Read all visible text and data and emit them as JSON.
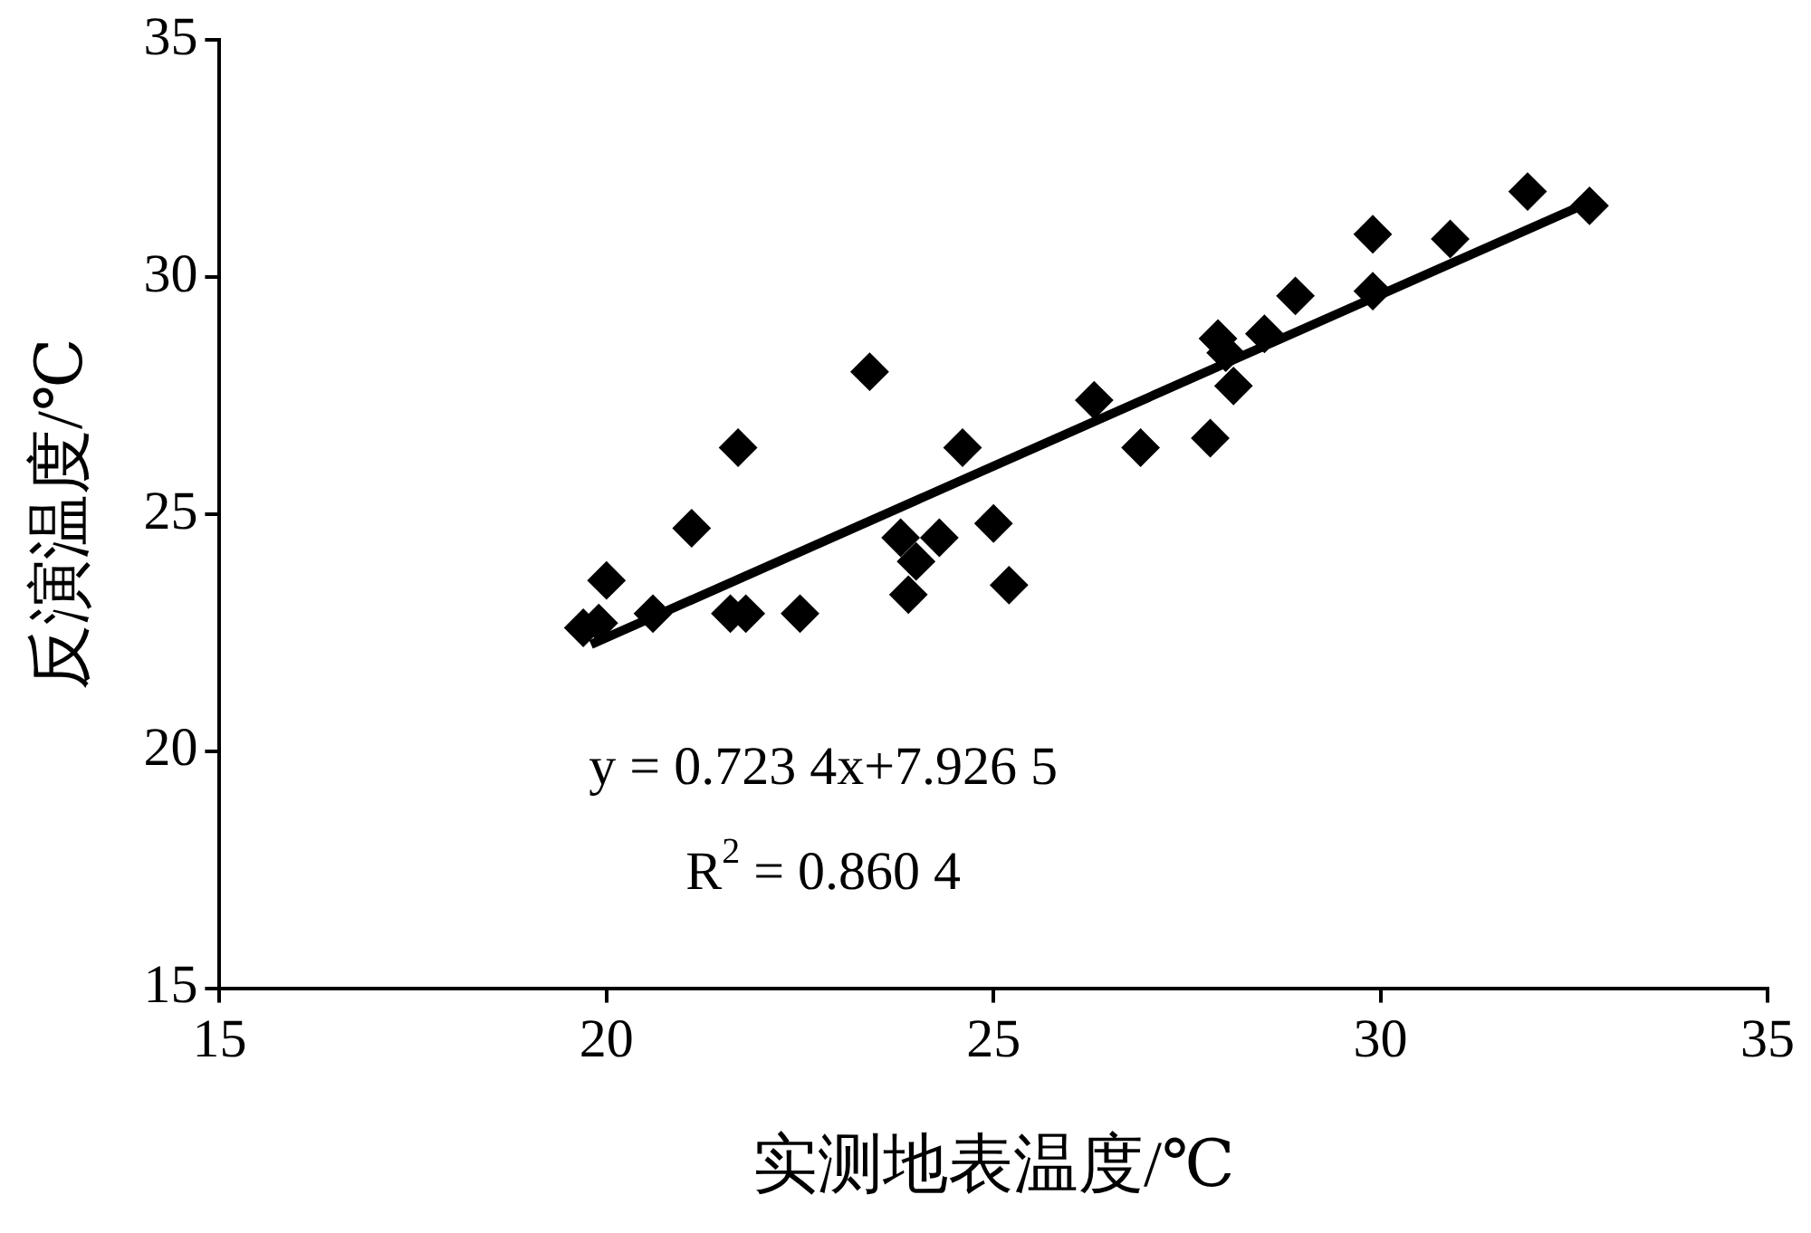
{
  "chart_data": {
    "type": "scatter",
    "xlabel": "实测地表温度/℃",
    "ylabel": "反演温度/℃",
    "x": [
      19.7,
      19.9,
      20.0,
      20.6,
      21.1,
      21.7,
      21.6,
      21.8,
      22.5,
      23.4,
      23.8,
      23.9,
      24.0,
      24.3,
      24.6,
      25.0,
      25.2,
      26.3,
      26.9,
      27.8,
      27.9,
      28.0,
      28.1,
      28.5,
      28.9,
      29.9,
      29.9,
      30.9,
      31.9,
      32.7
    ],
    "series": [
      {
        "type": "scatter",
        "color": "#000000",
        "marker": "diamond",
        "values": [
          22.6,
          22.7,
          23.6,
          22.9,
          24.7,
          26.4,
          22.9,
          22.9,
          22.9,
          28.0,
          24.5,
          23.3,
          24.0,
          24.5,
          26.4,
          24.8,
          23.5,
          27.4,
          26.4,
          26.6,
          28.7,
          28.4,
          27.7,
          28.8,
          29.6,
          29.7,
          30.9,
          30.8,
          31.8,
          31.5
        ]
      },
      {
        "type": "line",
        "color": "#000000",
        "marker": "none",
        "line_style": "solid",
        "x": [
          19.8,
          32.8
        ],
        "values": [
          22.25,
          31.65
        ]
      }
    ],
    "xlim": [
      15,
      35
    ],
    "xticks": [
      15,
      20,
      25,
      30,
      35
    ],
    "ylim": [
      15,
      35
    ],
    "yticks": [
      15,
      20,
      25,
      30,
      35
    ],
    "grid": false,
    "legend": false,
    "annotations": [
      "y = 0.723 4x+7.926 5",
      "R$^{2}$ = 0.860 4"
    ]
  }
}
